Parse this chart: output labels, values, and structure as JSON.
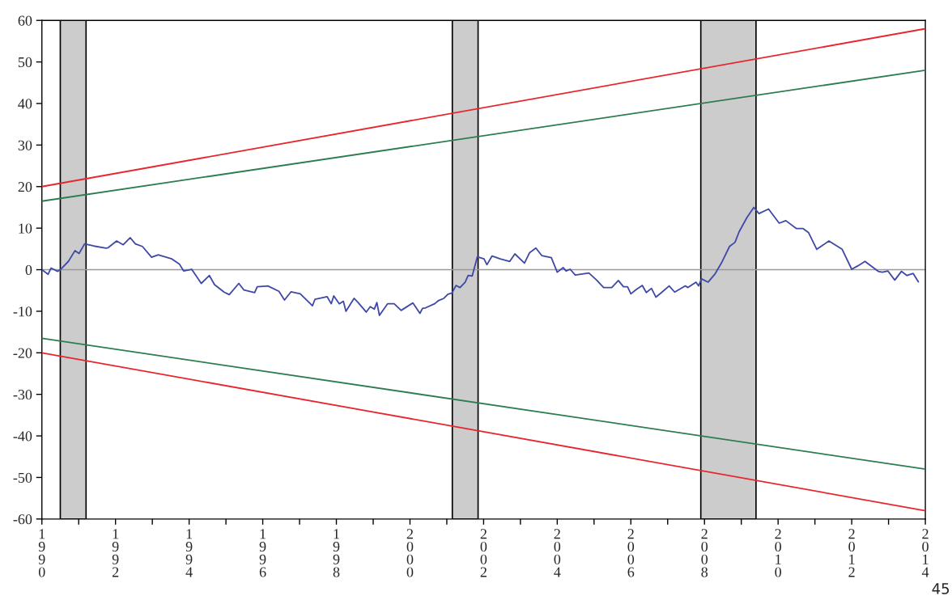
{
  "chart_data": {
    "type": "line",
    "series": [
      {
        "color": "#3f48a8",
        "x": [
          1990.0,
          1990.17,
          1990.25,
          1990.43,
          1990.5,
          1990.72,
          1990.9,
          1991.01,
          1991.16,
          1991.41,
          1991.74,
          1991.8,
          1992.03,
          1992.21,
          1992.4,
          1992.54,
          1992.73,
          1992.98,
          1993.16,
          1993.53,
          1993.74,
          1993.85,
          1994.07,
          1994.33,
          1994.55,
          1994.69,
          1994.95,
          1995.09,
          1995.35,
          1995.49,
          1995.78,
          1995.85,
          1996.14,
          1996.44,
          1996.59,
          1996.77,
          1997.02,
          1997.35,
          1997.42,
          1997.75,
          1997.86,
          1997.93,
          1998.08,
          1998.19,
          1998.26,
          1998.48,
          1998.59,
          1998.81,
          1998.92,
          1999.03,
          1999.1,
          1999.17,
          1999.39,
          1999.57,
          1999.76,
          2000.08,
          2000.27,
          2000.34,
          2000.42,
          2000.67,
          2000.78,
          2000.92,
          2001.03,
          2001.14,
          2001.25,
          2001.36,
          2001.5,
          2001.58,
          2001.69,
          2001.83,
          2002.01,
          2002.09,
          2002.23,
          2002.45,
          2002.71,
          2002.85,
          2003.11,
          2003.25,
          2003.42,
          2003.58,
          2003.84,
          2004.0,
          2004.16,
          2004.24,
          2004.35,
          2004.49,
          2004.86,
          2005.07,
          2005.26,
          2005.48,
          2005.66,
          2005.8,
          2005.91,
          2006.0,
          2006.14,
          2006.31,
          2006.42,
          2006.56,
          2006.68,
          2006.82,
          2007.04,
          2007.19,
          2007.48,
          2007.55,
          2007.77,
          2007.84,
          2007.92,
          2008.1,
          2008.28,
          2008.46,
          2008.68,
          2008.83,
          2008.94,
          2009.15,
          2009.34,
          2009.48,
          2009.74,
          2010.03,
          2010.21,
          2010.5,
          2010.68,
          2010.83,
          2011.05,
          2011.38,
          2011.74,
          2012.0,
          2012.18,
          2012.36,
          2012.72,
          2012.83,
          2012.98,
          2013.17,
          2013.35,
          2013.5,
          2013.67,
          2013.81
        ],
        "values": [
          0,
          -1.1,
          0.4,
          -0.4,
          0,
          2.0,
          4.6,
          3.9,
          6.2,
          5.7,
          5.2,
          5.3,
          6.9,
          6.0,
          7.7,
          6.2,
          5.6,
          3.0,
          3.6,
          2.6,
          1.3,
          -0.3,
          0.1,
          -3.3,
          -1.4,
          -3.6,
          -5.4,
          -6.0,
          -3.3,
          -4.9,
          -5.5,
          -4.1,
          -3.9,
          -5.2,
          -7.3,
          -5.3,
          -5.8,
          -8.7,
          -7.1,
          -6.5,
          -8.2,
          -6.3,
          -8.2,
          -7.6,
          -10.0,
          -6.9,
          -7.9,
          -10.2,
          -8.9,
          -9.5,
          -7.9,
          -11.0,
          -8.2,
          -8.2,
          -9.8,
          -8.0,
          -10.5,
          -9.3,
          -9.2,
          -8.2,
          -7.4,
          -6.9,
          -5.9,
          -5.6,
          -3.8,
          -4.3,
          -3.0,
          -1.4,
          -1.5,
          3.1,
          2.6,
          1.2,
          3.3,
          2.6,
          2.0,
          3.8,
          1.6,
          4.1,
          5.2,
          3.4,
          2.9,
          -0.6,
          0.5,
          -0.3,
          0.1,
          -1.3,
          -0.8,
          -2.5,
          -4.3,
          -4.3,
          -2.6,
          -4.1,
          -4.1,
          -5.8,
          -4.8,
          -3.8,
          -5.5,
          -4.5,
          -6.6,
          -5.6,
          -3.9,
          -5.4,
          -3.9,
          -4.3,
          -3.0,
          -3.9,
          -2.2,
          -3.0,
          -1.1,
          1.6,
          5.6,
          6.6,
          9.1,
          12.5,
          15.0,
          13.5,
          14.6,
          11.2,
          11.8,
          9.9,
          9.9,
          8.9,
          4.9,
          6.9,
          4.9,
          0.1,
          1.0,
          2.0,
          -0.4,
          -0.6,
          -0.3,
          -2.5,
          -0.4,
          -1.4,
          -0.9,
          -2.9
        ]
      },
      {
        "color": "#e8262c",
        "x": [
          1990,
          2014
        ],
        "values": [
          20,
          58
        ]
      },
      {
        "color": "#2e7d4f",
        "x": [
          1990,
          2014
        ],
        "values": [
          16.5,
          48
        ]
      },
      {
        "color": "#2e7d4f",
        "x": [
          1990,
          2014
        ],
        "values": [
          -16.5,
          -48
        ]
      },
      {
        "color": "#e8262c",
        "x": [
          1990,
          2014
        ],
        "values": [
          -20,
          -58
        ]
      }
    ],
    "xlim": [
      1990,
      2014
    ],
    "xticks": [
      1990,
      {
        "value": 1991,
        "label": null
      },
      1992,
      {
        "value": 1993,
        "label": null
      },
      1994,
      {
        "value": 1995,
        "label": null
      },
      1996,
      {
        "value": 1997,
        "label": null
      },
      1998,
      {
        "value": 1999,
        "label": null
      },
      2000,
      {
        "value": 2001,
        "label": null
      },
      2002,
      {
        "value": 2003,
        "label": null
      },
      2004,
      {
        "value": 2005,
        "label": null
      },
      2006,
      {
        "value": 2007,
        "label": null
      },
      2008,
      {
        "value": 2009,
        "label": null
      },
      2010,
      {
        "value": 2011,
        "label": null
      },
      2012,
      {
        "value": 2013,
        "label": null
      },
      2014
    ],
    "ylim": [
      -60,
      60
    ],
    "yticks": [
      -60,
      -50,
      -40,
      -30,
      -20,
      -10,
      0,
      10,
      20,
      30,
      40,
      50,
      60
    ],
    "ref_lines": [
      {
        "axis": "y",
        "value": 0,
        "color": "#999999"
      }
    ],
    "bands": [
      {
        "axis": "x",
        "from": 1990.5,
        "to": 1991.2,
        "color": "#cccccc"
      },
      {
        "axis": "x",
        "from": 2001.15,
        "to": 2001.85,
        "color": "#cccccc"
      },
      {
        "axis": "x",
        "from": 2007.9,
        "to": 2009.4,
        "color": "#cccccc"
      }
    ],
    "grid": false,
    "legend": false,
    "annotations": [
      "45"
    ]
  }
}
